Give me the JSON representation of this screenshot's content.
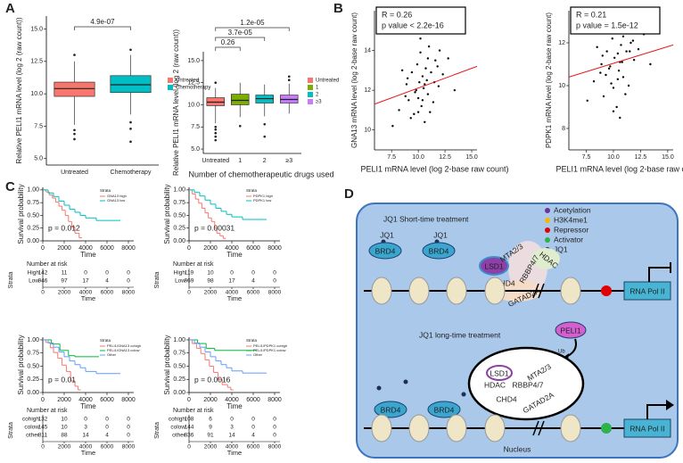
{
  "panel_labels": [
    "A",
    "B",
    "C",
    "D"
  ],
  "chart_data": [
    {
      "type": "box",
      "y_label": "Relative PELI1 mRNA level (log 2 (raw count))",
      "categories": [
        "Untreated",
        "Chemotherapy"
      ],
      "colors": [
        "#f8766d",
        "#00bfc4"
      ],
      "boxes": [
        {
          "min": 7.6,
          "q1": 9.8,
          "median": 10.4,
          "q3": 10.9,
          "max": 12.5,
          "outliers": [
            6.5,
            6.9,
            7.2,
            13.0
          ]
        },
        {
          "min": 8.4,
          "q1": 10.1,
          "median": 10.7,
          "q3": 11.4,
          "max": 13.0,
          "outliers": [
            6.3,
            7.3,
            7.8,
            13.4
          ]
        }
      ],
      "ylim": [
        4.5,
        16
      ],
      "yticks": [
        {
          "value": 5,
          "label": "5.0"
        },
        7.5,
        {
          "value": 10,
          "label": "10.0"
        },
        12.5,
        {
          "value": 15,
          "label": "15.0"
        }
      ],
      "annotations": [
        "4.9e-07"
      ]
    },
    {
      "type": "box",
      "y_label": "Relative PELI1 mRNA level (log 2 (raw count))",
      "x_label": "Number of chemotherapeutic drugs used",
      "categories": [
        "Untreated",
        "1",
        "2",
        "≥3"
      ],
      "colors": [
        "#f8766d",
        "#7cae00",
        "#00bfc4",
        "#c77cff"
      ],
      "boxes": [
        {
          "min": 7.9,
          "q1": 9.9,
          "median": 10.3,
          "q3": 10.8,
          "max": 11.9,
          "outliers": [
            6.0,
            6.4,
            6.8,
            7.2,
            7.5,
            12.5
          ]
        },
        {
          "min": 8.6,
          "q1": 10.0,
          "median": 10.5,
          "q3": 11.2,
          "max": 12.5,
          "outliers": [
            7.6
          ]
        },
        {
          "min": 8.7,
          "q1": 10.2,
          "median": 10.7,
          "q3": 11.1,
          "max": 12.3,
          "outliers": [
            6.4,
            7.8
          ]
        },
        {
          "min": 9.0,
          "q1": 10.2,
          "median": 10.6,
          "q3": 11.1,
          "max": 12.4,
          "outliers": [
            12.8,
            13.2
          ]
        }
      ],
      "ylim": [
        4.5,
        16
      ],
      "yticks": [
        {
          "value": 5,
          "label": "5.0"
        },
        7.5,
        {
          "value": 10,
          "label": "10.0"
        },
        12.5,
        {
          "value": 15,
          "label": "15.0"
        }
      ],
      "annotations": [
        "0.26",
        "3.7e-05",
        "1.2e-05"
      ]
    },
    {
      "type": "scatter",
      "x_label": "PELI1 mRNA level (log 2-base raw count)",
      "y_label": "GNA13 mRNA level (log 2-base raw count)",
      "color": "#000000",
      "x": [
        8.2,
        8.9,
        9.1,
        9.4,
        9.6,
        9.8,
        9.9,
        10.0,
        10.1,
        10.2,
        10.3,
        10.4,
        10.5,
        10.6,
        10.7,
        10.8,
        10.9,
        11.0,
        11.2,
        11.4,
        11.6,
        11.9,
        12.3,
        12.8,
        13.4,
        7.6,
        8.5,
        9.3,
        10.2,
        10.6,
        11.1,
        9.7,
        10.9,
        12.0,
        9.0,
        10.4,
        11.5,
        8.8,
        10.0,
        11.8
      ],
      "y": [
        11.0,
        12.3,
        11.5,
        12.9,
        10.8,
        12.0,
        13.3,
        11.6,
        12.4,
        13.9,
        11.2,
        12.7,
        12.1,
        10.4,
        13.1,
        12.5,
        11.8,
        14.2,
        12.9,
        11.4,
        13.5,
        12.2,
        12.8,
        13.6,
        12.0,
        10.2,
        13.0,
        10.6,
        14.6,
        12.3,
        10.9,
        11.9,
        13.6,
        14.0,
        12.6,
        11.5,
        12.4,
        11.7,
        10.9,
        13.2
      ],
      "fit": {
        "color": "#e41a1c",
        "x": [
          5.9,
          15.5
        ],
        "y": [
          11.3,
          13.2
        ]
      },
      "xlim": [
        5.9,
        15.5
      ],
      "xticks": [
        7.5,
        {
          "value": 10,
          "label": "10.0"
        },
        12.5,
        {
          "value": 15,
          "label": "15.0"
        }
      ],
      "ylim": [
        9,
        16
      ],
      "yticks": [
        10,
        12,
        14
      ],
      "stats": [
        "R = 0.26",
        "p value < 2.2e-16"
      ]
    },
    {
      "type": "scatter",
      "x_label": "PELI1 mRNA level (log 2-base raw count)",
      "y_label": "PDPK1 mRNA level (log 2-base raw count)",
      "color": "#000000",
      "x": [
        8.2,
        8.9,
        9.1,
        9.4,
        9.6,
        9.8,
        9.9,
        10.0,
        10.1,
        10.2,
        10.3,
        10.4,
        10.5,
        10.6,
        10.7,
        10.8,
        10.9,
        11.0,
        11.2,
        11.4,
        11.6,
        11.9,
        12.3,
        12.8,
        13.4,
        7.6,
        8.5,
        9.3,
        10.2,
        10.6,
        11.1,
        9.7,
        10.9,
        12.0,
        9.0,
        10.4,
        11.5,
        8.8,
        10.0,
        11.8
      ],
      "y": [
        10.2,
        11.0,
        9.5,
        11.6,
        10.8,
        10.1,
        12.2,
        9.9,
        11.3,
        12.6,
        9.0,
        11.5,
        10.7,
        8.5,
        11.9,
        11.1,
        10.4,
        12.8,
        11.6,
        10.0,
        12.0,
        11.2,
        11.7,
        12.4,
        11.0,
        9.3,
        11.8,
        10.5,
        12.9,
        11.1,
        9.6,
        10.9,
        12.3,
        12.5,
        11.4,
        10.3,
        11.6,
        10.6,
        8.8,
        12.1
      ],
      "fit": {
        "color": "#e41a1c",
        "x": [
          5.9,
          15.5
        ],
        "y": [
          10.4,
          11.9
        ]
      },
      "xlim": [
        5.9,
        15.5
      ],
      "xticks": [
        7.5,
        {
          "value": 10,
          "label": "10.0"
        },
        12.5,
        {
          "value": 15,
          "label": "15.0"
        }
      ],
      "ylim": [
        7,
        13.5
      ],
      "yticks": [
        8,
        10,
        12
      ],
      "stats": [
        "R = 0.21",
        "p value = 1.5e-12"
      ]
    },
    {
      "type": "km",
      "y_label": "Survival probability",
      "x_label": "Time",
      "legend_title": "Strata",
      "p_label": "p = 0.012",
      "risk_title": "Number at risk",
      "risk_x_label": "Time",
      "risk_y_label": "Strata",
      "xlim": [
        0,
        8500
      ],
      "xticks": [
        0,
        2000,
        4000,
        6000,
        8000
      ],
      "ylim": [
        0,
        1.05
      ],
      "yticks": [
        {
          "value": 0,
          "label": "0.00"
        },
        0.25,
        {
          "value": 0.5,
          "label": "0.50"
        },
        0.75,
        {
          "value": 1,
          "label": "1.00"
        }
      ],
      "series": [
        {
          "name": "GNA13 high",
          "row_label": "High",
          "color": "#f8766d",
          "x": [
            0,
            300,
            600,
            900,
            1200,
            1500,
            1800,
            2100,
            2400,
            2700,
            3000,
            3400
          ],
          "y": [
            1,
            0.96,
            0.9,
            0.84,
            0.76,
            0.68,
            0.6,
            0.5,
            0.38,
            0.27,
            0.15,
            0.06
          ],
          "at_risk": [
            142,
            11,
            0,
            0,
            0
          ]
        },
        {
          "name": "GNA13 low",
          "row_label": "Low",
          "color": "#00bfc4",
          "x": [
            0,
            500,
            1000,
            1500,
            2000,
            2500,
            3000,
            3500,
            4000,
            5000,
            6000,
            7000
          ],
          "y": [
            1,
            0.94,
            0.87,
            0.78,
            0.7,
            0.62,
            0.56,
            0.5,
            0.45,
            0.4,
            0.4,
            0.4
          ],
          "at_risk": [
            946,
            97,
            17,
            4,
            0
          ]
        }
      ]
    },
    {
      "type": "km",
      "y_label": "Survival probability",
      "x_label": "Time",
      "legend_title": "Strata",
      "p_label": "p = 0.00031",
      "risk_title": "Number at risk",
      "risk_x_label": "Time",
      "risk_y_label": "Strata",
      "xlim": [
        0,
        8500
      ],
      "xticks": [
        0,
        2000,
        4000,
        6000,
        8000
      ],
      "ylim": [
        0,
        1.05
      ],
      "yticks": [
        {
          "value": 0,
          "label": "0.00"
        },
        0.25,
        {
          "value": 0.5,
          "label": "0.50"
        },
        0.75,
        {
          "value": 1,
          "label": "1.00"
        }
      ],
      "series": [
        {
          "name": "PDPK1 high",
          "row_label": "High",
          "color": "#f8766d",
          "x": [
            0,
            300,
            600,
            900,
            1200,
            1500,
            1800,
            2100,
            2400,
            2600,
            2900,
            3200
          ],
          "y": [
            1,
            0.92,
            0.82,
            0.74,
            0.64,
            0.55,
            0.45,
            0.38,
            0.25,
            0.15,
            0.1,
            0.05
          ],
          "at_risk": [
            119,
            10,
            0,
            0,
            0
          ]
        },
        {
          "name": "PDPK1 low",
          "row_label": "Low",
          "color": "#00bfc4",
          "x": [
            0,
            500,
            1000,
            1500,
            2000,
            2500,
            3000,
            3500,
            4000,
            5000,
            6000,
            7000
          ],
          "y": [
            1,
            0.95,
            0.88,
            0.8,
            0.72,
            0.64,
            0.58,
            0.52,
            0.47,
            0.42,
            0.42,
            0.42
          ],
          "at_risk": [
            969,
            98,
            17,
            4,
            0
          ]
        }
      ]
    },
    {
      "type": "km",
      "y_label": "Survival probability",
      "x_label": "Time",
      "legend_title": "Strata",
      "p_label": "p = 0.01",
      "risk_title": "Number at risk",
      "risk_x_label": "Time",
      "risk_y_label": "Strata",
      "xlim": [
        0,
        8500
      ],
      "xticks": [
        0,
        2000,
        4000,
        6000,
        8000
      ],
      "ylim": [
        0,
        1.05
      ],
      "yticks": [
        {
          "value": 0,
          "label": "0.00"
        },
        0.25,
        {
          "value": 0.5,
          "label": "0.50"
        },
        0.75,
        {
          "value": 1,
          "label": "1.00"
        }
      ],
      "series": [
        {
          "name": "PELI1/GNA13 cohigh",
          "row_label": "cohigh",
          "color": "#f8766d",
          "x": [
            0,
            300,
            700,
            1000,
            1400,
            1800,
            2200,
            2600,
            3000,
            3300
          ],
          "y": [
            1,
            0.95,
            0.85,
            0.76,
            0.65,
            0.52,
            0.4,
            0.22,
            0.12,
            0.05
          ],
          "at_risk": [
            132,
            10,
            0,
            0,
            0
          ]
        },
        {
          "name": "PELI1/GNA13 colow",
          "row_label": "colow",
          "color": "#00ba38",
          "x": [
            0,
            800,
            1600,
            2400,
            3000,
            3400,
            4000,
            5000
          ],
          "y": [
            1,
            0.92,
            0.8,
            0.7,
            0.68,
            0.68,
            0.68,
            0.68
          ],
          "at_risk": [
            145,
            10,
            3,
            0,
            0
          ]
        },
        {
          "name": "Other",
          "row_label": "other",
          "color": "#619cff",
          "x": [
            0,
            500,
            1000,
            1500,
            2000,
            2500,
            3000,
            3500,
            4000,
            5000,
            6000,
            7000
          ],
          "y": [
            1,
            0.94,
            0.86,
            0.77,
            0.68,
            0.6,
            0.53,
            0.47,
            0.4,
            0.36,
            0.36,
            0.36
          ],
          "at_risk": [
            811,
            88,
            14,
            4,
            0
          ]
        }
      ]
    },
    {
      "type": "km",
      "y_label": "Survival probability",
      "x_label": "Time",
      "legend_title": "Strata",
      "p_label": "p = 0.0016",
      "risk_title": "Number at risk",
      "risk_x_label": "Time",
      "risk_y_label": "Strata",
      "xlim": [
        0,
        8500
      ],
      "xticks": [
        0,
        2000,
        4000,
        6000,
        8000
      ],
      "ylim": [
        0,
        1.05
      ],
      "yticks": [
        {
          "value": 0,
          "label": "0.00"
        },
        0.25,
        {
          "value": 0.5,
          "label": "0.50"
        },
        0.75,
        {
          "value": 1,
          "label": "1.00"
        }
      ],
      "series": [
        {
          "name": "PELI1/PDPK1 cohigh",
          "row_label": "cohigh",
          "color": "#f8766d",
          "x": [
            0,
            300,
            700,
            1100,
            1500,
            1900,
            2300,
            2700,
            3100,
            3600,
            3900
          ],
          "y": [
            1,
            0.93,
            0.84,
            0.74,
            0.62,
            0.5,
            0.38,
            0.25,
            0.15,
            0.1,
            0.05
          ],
          "at_risk": [
            108,
            6,
            0,
            0,
            0
          ]
        },
        {
          "name": "PELI1/PDPK1 colow",
          "row_label": "colow",
          "color": "#00ba38",
          "x": [
            0,
            800,
            1600,
            2400,
            3000,
            3400,
            4000,
            5000,
            6000
          ],
          "y": [
            1,
            0.93,
            0.84,
            0.8,
            0.8,
            0.8,
            0.8,
            0.8,
            0.8
          ],
          "at_risk": [
            144,
            9,
            3,
            0,
            0
          ]
        },
        {
          "name": "Other",
          "row_label": "other",
          "color": "#619cff",
          "x": [
            0,
            500,
            1000,
            1500,
            2000,
            2500,
            3000,
            3500,
            4000,
            5000,
            6000,
            7000
          ],
          "y": [
            1,
            0.94,
            0.86,
            0.77,
            0.68,
            0.6,
            0.53,
            0.47,
            0.41,
            0.37,
            0.37,
            0.37
          ],
          "at_risk": [
            836,
            91,
            14,
            4,
            0
          ]
        }
      ]
    }
  ],
  "diagram": {
    "title_short": "JQ1 Short-time treatment",
    "title_long": "JQ1 long-time treatment",
    "legend": [
      "Acetylation",
      "H3K4me1",
      "Repressor",
      "Activator",
      "JQ1"
    ],
    "top": {
      "jq1": [
        "JQ1",
        "JQ1"
      ],
      "brd4": [
        "BRD4",
        "BRD4"
      ],
      "complex": [
        "LSD1",
        "MTA2/3",
        "HDAC",
        "RBBP4/7",
        "CHD4",
        "GATAD2A"
      ],
      "pol": "RNA Pol II"
    },
    "peli1": "PELI1",
    "ub": "Ub",
    "bottom": {
      "complex": [
        "LSD1",
        "MTA2/3",
        "HDAC",
        "RBBP4/7",
        "CHD4",
        "GATAD2A"
      ],
      "brd4": [
        "BRD4",
        "BRD4"
      ],
      "pol": "RNA Pol II"
    },
    "nucleus": "Nucleus"
  }
}
